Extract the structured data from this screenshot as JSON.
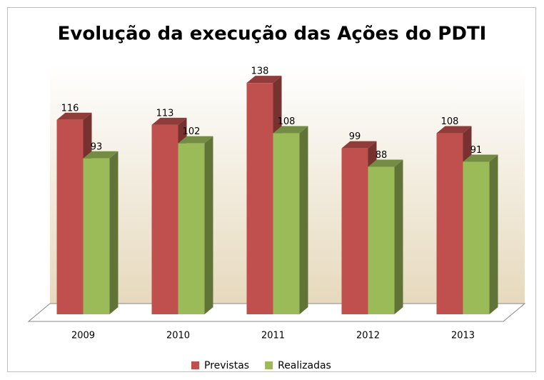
{
  "chart_data": {
    "type": "bar",
    "title": "Evolução da execução das Ações do PDTI",
    "categories": [
      "2009",
      "2010",
      "2011",
      "2012",
      "2013"
    ],
    "series": [
      {
        "name": "Previstas",
        "color": "#c0504d",
        "values": [
          116,
          113,
          138,
          99,
          108
        ]
      },
      {
        "name": "Realizadas",
        "color": "#9bbb59",
        "values": [
          93,
          102,
          108,
          88,
          91
        ]
      }
    ],
    "ylim": [
      0,
      150
    ]
  }
}
